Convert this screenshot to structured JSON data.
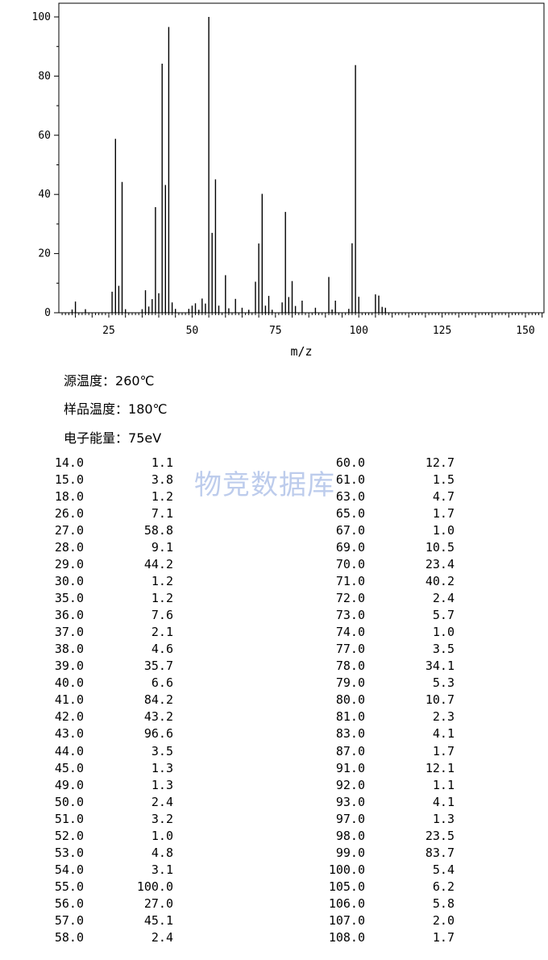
{
  "chart_data": {
    "type": "bar",
    "title": "",
    "xlabel": "m/z",
    "ylabel": "",
    "xlim": [
      10,
      155
    ],
    "ylim": [
      0,
      100
    ],
    "x_ticks": [
      25,
      50,
      75,
      100,
      125,
      150
    ],
    "y_ticks": [
      0,
      20,
      40,
      60,
      80,
      100
    ],
    "grid": false,
    "bar_color": "#000000",
    "points": [
      {
        "x": 14,
        "y": 1.1
      },
      {
        "x": 15,
        "y": 3.8
      },
      {
        "x": 18,
        "y": 1.2
      },
      {
        "x": 26,
        "y": 7.1
      },
      {
        "x": 27,
        "y": 58.8
      },
      {
        "x": 28,
        "y": 9.1
      },
      {
        "x": 29,
        "y": 44.2
      },
      {
        "x": 30,
        "y": 1.2
      },
      {
        "x": 35,
        "y": 1.2
      },
      {
        "x": 36,
        "y": 7.6
      },
      {
        "x": 37,
        "y": 2.1
      },
      {
        "x": 38,
        "y": 4.6
      },
      {
        "x": 39,
        "y": 35.7
      },
      {
        "x": 40,
        "y": 6.6
      },
      {
        "x": 41,
        "y": 84.2
      },
      {
        "x": 42,
        "y": 43.2
      },
      {
        "x": 43,
        "y": 96.6
      },
      {
        "x": 44,
        "y": 3.5
      },
      {
        "x": 45,
        "y": 1.3
      },
      {
        "x": 49,
        "y": 1.3
      },
      {
        "x": 50,
        "y": 2.4
      },
      {
        "x": 51,
        "y": 3.2
      },
      {
        "x": 52,
        "y": 1.0
      },
      {
        "x": 53,
        "y": 4.8
      },
      {
        "x": 54,
        "y": 3.1
      },
      {
        "x": 55,
        "y": 100.0
      },
      {
        "x": 56,
        "y": 27.0
      },
      {
        "x": 57,
        "y": 45.1
      },
      {
        "x": 58,
        "y": 2.4
      },
      {
        "x": 60,
        "y": 12.7
      },
      {
        "x": 61,
        "y": 1.5
      },
      {
        "x": 63,
        "y": 4.7
      },
      {
        "x": 65,
        "y": 1.7
      },
      {
        "x": 67,
        "y": 1.0
      },
      {
        "x": 69,
        "y": 10.5
      },
      {
        "x": 70,
        "y": 23.4
      },
      {
        "x": 71,
        "y": 40.2
      },
      {
        "x": 72,
        "y": 2.4
      },
      {
        "x": 73,
        "y": 5.7
      },
      {
        "x": 74,
        "y": 1.0
      },
      {
        "x": 77,
        "y": 3.5
      },
      {
        "x": 78,
        "y": 34.1
      },
      {
        "x": 79,
        "y": 5.3
      },
      {
        "x": 80,
        "y": 10.7
      },
      {
        "x": 81,
        "y": 2.3
      },
      {
        "x": 83,
        "y": 4.1
      },
      {
        "x": 87,
        "y": 1.7
      },
      {
        "x": 91,
        "y": 12.1
      },
      {
        "x": 92,
        "y": 1.1
      },
      {
        "x": 93,
        "y": 4.1
      },
      {
        "x": 97,
        "y": 1.3
      },
      {
        "x": 98,
        "y": 23.5
      },
      {
        "x": 99,
        "y": 83.7
      },
      {
        "x": 100,
        "y": 5.4
      },
      {
        "x": 105,
        "y": 6.2
      },
      {
        "x": 106,
        "y": 5.8
      },
      {
        "x": 107,
        "y": 2.0
      },
      {
        "x": 108,
        "y": 1.7
      }
    ]
  },
  "conditions": {
    "source_temp": {
      "label": "源温度：",
      "value": "260℃"
    },
    "sample_temp": {
      "label": "样品温度：",
      "value": "180℃"
    },
    "electron_energy": {
      "label": "电子能量：",
      "value": "75eV"
    }
  },
  "watermark": "物竞数据库",
  "table_left": [
    [
      "14.0",
      "1.1"
    ],
    [
      "15.0",
      "3.8"
    ],
    [
      "18.0",
      "1.2"
    ],
    [
      "26.0",
      "7.1"
    ],
    [
      "27.0",
      "58.8"
    ],
    [
      "28.0",
      "9.1"
    ],
    [
      "29.0",
      "44.2"
    ],
    [
      "30.0",
      "1.2"
    ],
    [
      "35.0",
      "1.2"
    ],
    [
      "36.0",
      "7.6"
    ],
    [
      "37.0",
      "2.1"
    ],
    [
      "38.0",
      "4.6"
    ],
    [
      "39.0",
      "35.7"
    ],
    [
      "40.0",
      "6.6"
    ],
    [
      "41.0",
      "84.2"
    ],
    [
      "42.0",
      "43.2"
    ],
    [
      "43.0",
      "96.6"
    ],
    [
      "44.0",
      "3.5"
    ],
    [
      "45.0",
      "1.3"
    ],
    [
      "49.0",
      "1.3"
    ],
    [
      "50.0",
      "2.4"
    ],
    [
      "51.0",
      "3.2"
    ],
    [
      "52.0",
      "1.0"
    ],
    [
      "53.0",
      "4.8"
    ],
    [
      "54.0",
      "3.1"
    ],
    [
      "55.0",
      "100.0"
    ],
    [
      "56.0",
      "27.0"
    ],
    [
      "57.0",
      "45.1"
    ],
    [
      "58.0",
      "2.4"
    ]
  ],
  "table_right": [
    [
      "60.0",
      "12.7"
    ],
    [
      "61.0",
      "1.5"
    ],
    [
      "63.0",
      "4.7"
    ],
    [
      "65.0",
      "1.7"
    ],
    [
      "67.0",
      "1.0"
    ],
    [
      "69.0",
      "10.5"
    ],
    [
      "70.0",
      "23.4"
    ],
    [
      "71.0",
      "40.2"
    ],
    [
      "72.0",
      "2.4"
    ],
    [
      "73.0",
      "5.7"
    ],
    [
      "74.0",
      "1.0"
    ],
    [
      "77.0",
      "3.5"
    ],
    [
      "78.0",
      "34.1"
    ],
    [
      "79.0",
      "5.3"
    ],
    [
      "80.0",
      "10.7"
    ],
    [
      "81.0",
      "2.3"
    ],
    [
      "83.0",
      "4.1"
    ],
    [
      "87.0",
      "1.7"
    ],
    [
      "91.0",
      "12.1"
    ],
    [
      "92.0",
      "1.1"
    ],
    [
      "93.0",
      "4.1"
    ],
    [
      "97.0",
      "1.3"
    ],
    [
      "98.0",
      "23.5"
    ],
    [
      "99.0",
      "83.7"
    ],
    [
      "100.0",
      "5.4"
    ],
    [
      "105.0",
      "6.2"
    ],
    [
      "106.0",
      "5.8"
    ],
    [
      "107.0",
      "2.0"
    ],
    [
      "108.0",
      "1.7"
    ]
  ]
}
